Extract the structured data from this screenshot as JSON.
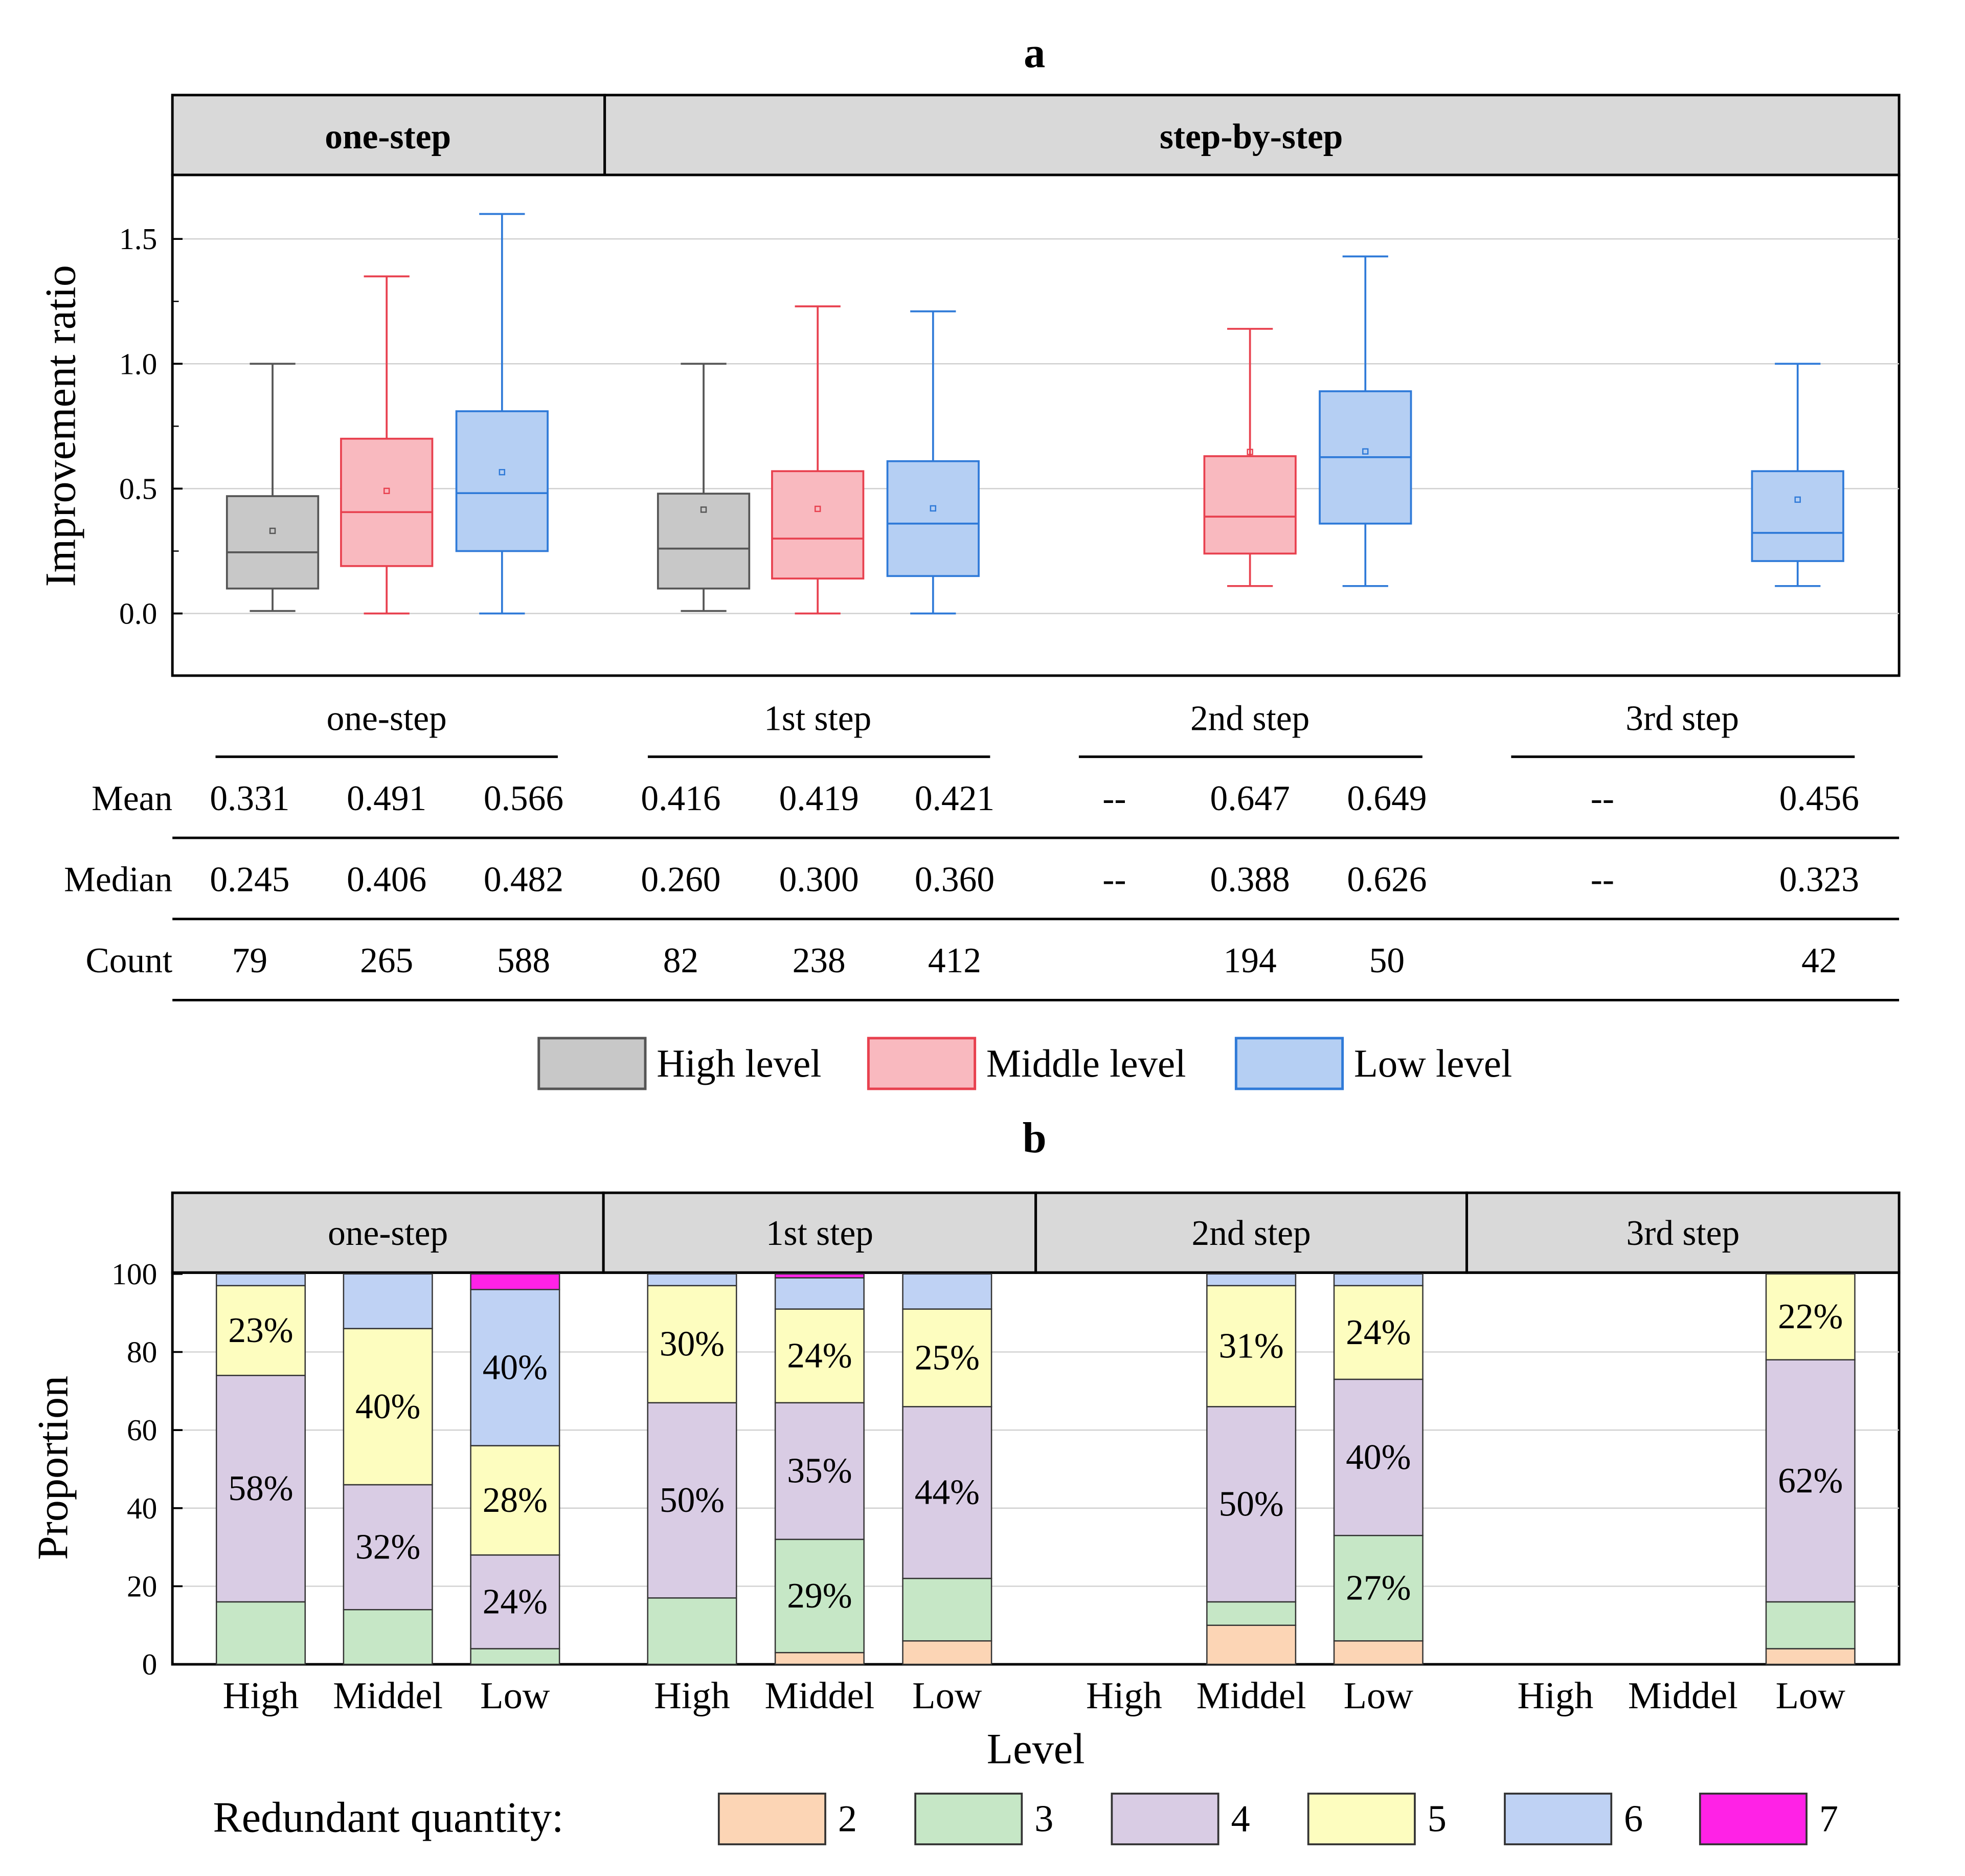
{
  "chart_data": [
    {
      "panel": "a",
      "type": "box",
      "ylabel": "Improvement ratio",
      "ylim": [
        -0.25,
        1.75
      ],
      "yticks": [
        0.0,
        0.5,
        1.0,
        1.5
      ],
      "ytick_labels": [
        "0.0",
        "0.5",
        "1.0",
        "1.5"
      ],
      "header_groups": [
        "one-step",
        "step-by-step"
      ],
      "sections": [
        "one-step",
        "1st step",
        "2nd step",
        "3rd step"
      ],
      "levels": [
        "High level",
        "Middle level",
        "Low level"
      ],
      "colors": {
        "High level": {
          "fill": "#c8c8c8",
          "stroke": "#555555"
        },
        "Middle level": {
          "fill": "#f9b9bf",
          "stroke": "#e8414f"
        },
        "Low level": {
          "fill": "#b5cff3",
          "stroke": "#2f7ad8"
        }
      },
      "boxes": [
        {
          "section": "one-step",
          "level": "High level",
          "min": 0.01,
          "q1": 0.1,
          "median": 0.245,
          "q3": 0.47,
          "max": 1.0,
          "mean": 0.331
        },
        {
          "section": "one-step",
          "level": "Middle level",
          "min": 0.0,
          "q1": 0.19,
          "median": 0.406,
          "q3": 0.7,
          "max": 1.35,
          "mean": 0.491
        },
        {
          "section": "one-step",
          "level": "Low level",
          "min": 0.0,
          "q1": 0.25,
          "median": 0.482,
          "q3": 0.81,
          "max": 1.6,
          "mean": 0.566
        },
        {
          "section": "1st step",
          "level": "High level",
          "min": 0.01,
          "q1": 0.1,
          "median": 0.26,
          "q3": 0.48,
          "max": 1.0,
          "mean": 0.416
        },
        {
          "section": "1st step",
          "level": "Middle level",
          "min": 0.0,
          "q1": 0.14,
          "median": 0.3,
          "q3": 0.57,
          "max": 1.23,
          "mean": 0.419
        },
        {
          "section": "1st step",
          "level": "Low level",
          "min": 0.0,
          "q1": 0.15,
          "median": 0.36,
          "q3": 0.61,
          "max": 1.21,
          "mean": 0.421
        },
        {
          "section": "2nd step",
          "level": "Middle level",
          "min": 0.11,
          "q1": 0.24,
          "median": 0.388,
          "q3": 0.63,
          "max": 1.14,
          "mean": 0.647
        },
        {
          "section": "2nd step",
          "level": "Low level",
          "min": 0.11,
          "q1": 0.36,
          "median": 0.626,
          "q3": 0.89,
          "max": 1.43,
          "mean": 0.649
        },
        {
          "section": "3rd step",
          "level": "Low level",
          "min": 0.11,
          "q1": 0.21,
          "median": 0.323,
          "q3": 0.57,
          "max": 1.0,
          "mean": 0.456
        }
      ],
      "table": {
        "row_labels": [
          "Mean",
          "Median",
          "Count"
        ],
        "rows": [
          [
            "0.331",
            "0.491",
            "0.566",
            "0.416",
            "0.419",
            "0.421",
            "--",
            "0.647",
            "0.649",
            "--",
            "0.456"
          ],
          [
            "0.245",
            "0.406",
            "0.482",
            "0.260",
            "0.300",
            "0.360",
            "--",
            "0.388",
            "0.626",
            "--",
            "0.323"
          ],
          [
            "79",
            "265",
            "588",
            "82",
            "238",
            "412",
            "",
            "194",
            "50",
            "",
            "42"
          ]
        ]
      }
    },
    {
      "panel": "b",
      "type": "bar",
      "stacked": true,
      "ylabel": "Proportion",
      "xlabel": "Level",
      "ylim": [
        0,
        100
      ],
      "yticks": [
        0,
        20,
        40,
        60,
        80,
        100
      ],
      "ytick_labels": [
        "0",
        "20",
        "40",
        "60",
        "80",
        "100"
      ],
      "panels": [
        "one-step",
        "1st step",
        "2nd step",
        "3rd step"
      ],
      "categories": [
        "High",
        "Middel",
        "Low"
      ],
      "legend_title": "Redundant quantity:",
      "stack_keys": [
        "2",
        "3",
        "4",
        "5",
        "6",
        "7"
      ],
      "stack_colors": [
        "#fcd5b5",
        "#c6e7c6",
        "#d9cce4",
        "#fdfdbf",
        "#bfd2f4",
        "#ff22e6"
      ],
      "stacks": [
        [
          {
            "category": "High",
            "values": [
              0,
              16,
              58,
              23,
              3,
              0
            ]
          },
          {
            "category": "Middel",
            "values": [
              0,
              14,
              32,
              40,
              14,
              0
            ]
          },
          {
            "category": "Low",
            "values": [
              0,
              4,
              24,
              28,
              40,
              4
            ]
          }
        ],
        [
          {
            "category": "High",
            "values": [
              0,
              17,
              50,
              30,
              3,
              0
            ]
          },
          {
            "category": "Middel",
            "values": [
              3,
              29,
              35,
              24,
              8,
              1
            ]
          },
          {
            "category": "Low",
            "values": [
              6,
              16,
              44,
              25,
              9,
              0
            ]
          }
        ],
        [
          {
            "category": "High",
            "values": null
          },
          {
            "category": "Middel",
            "values": [
              10,
              6,
              50,
              31,
              3,
              0
            ]
          },
          {
            "category": "Low",
            "values": [
              6,
              27,
              40,
              24,
              3,
              0
            ]
          }
        ],
        [
          {
            "category": "High",
            "values": null
          },
          {
            "category": "Middel",
            "values": null
          },
          {
            "category": "Low",
            "values": [
              4,
              12,
              62,
              22,
              0,
              0
            ]
          }
        ]
      ],
      "labels": [
        {
          "panel": 0,
          "category": "High",
          "key": "5",
          "text": "23%"
        },
        {
          "panel": 0,
          "category": "High",
          "key": "4",
          "text": "58%"
        },
        {
          "panel": 0,
          "category": "Middel",
          "key": "5",
          "text": "40%"
        },
        {
          "panel": 0,
          "category": "Middel",
          "key": "4",
          "text": "32%"
        },
        {
          "panel": 0,
          "category": "Low",
          "key": "6",
          "text": "40%"
        },
        {
          "panel": 0,
          "category": "Low",
          "key": "5",
          "text": "28%"
        },
        {
          "panel": 0,
          "category": "Low",
          "key": "4",
          "text": "24%"
        },
        {
          "panel": 1,
          "category": "High",
          "key": "5",
          "text": "30%"
        },
        {
          "panel": 1,
          "category": "High",
          "key": "4",
          "text": "50%"
        },
        {
          "panel": 1,
          "category": "Middel",
          "key": "5",
          "text": "24%"
        },
        {
          "panel": 1,
          "category": "Middel",
          "key": "4",
          "text": "35%"
        },
        {
          "panel": 1,
          "category": "Middel",
          "key": "3",
          "text": "29%"
        },
        {
          "panel": 1,
          "category": "Low",
          "key": "5",
          "text": "25%"
        },
        {
          "panel": 1,
          "category": "Low",
          "key": "4",
          "text": "44%"
        },
        {
          "panel": 2,
          "category": "Middel",
          "key": "5",
          "text": "31%"
        },
        {
          "panel": 2,
          "category": "Middel",
          "key": "4",
          "text": "50%"
        },
        {
          "panel": 2,
          "category": "Low",
          "key": "5",
          "text": "24%"
        },
        {
          "panel": 2,
          "category": "Low",
          "key": "4",
          "text": "40%"
        },
        {
          "panel": 2,
          "category": "Low",
          "key": "3",
          "text": "27%"
        },
        {
          "panel": 3,
          "category": "Low",
          "key": "5",
          "text": "22%"
        },
        {
          "panel": 3,
          "category": "Low",
          "key": "4",
          "text": "62%"
        }
      ]
    }
  ]
}
